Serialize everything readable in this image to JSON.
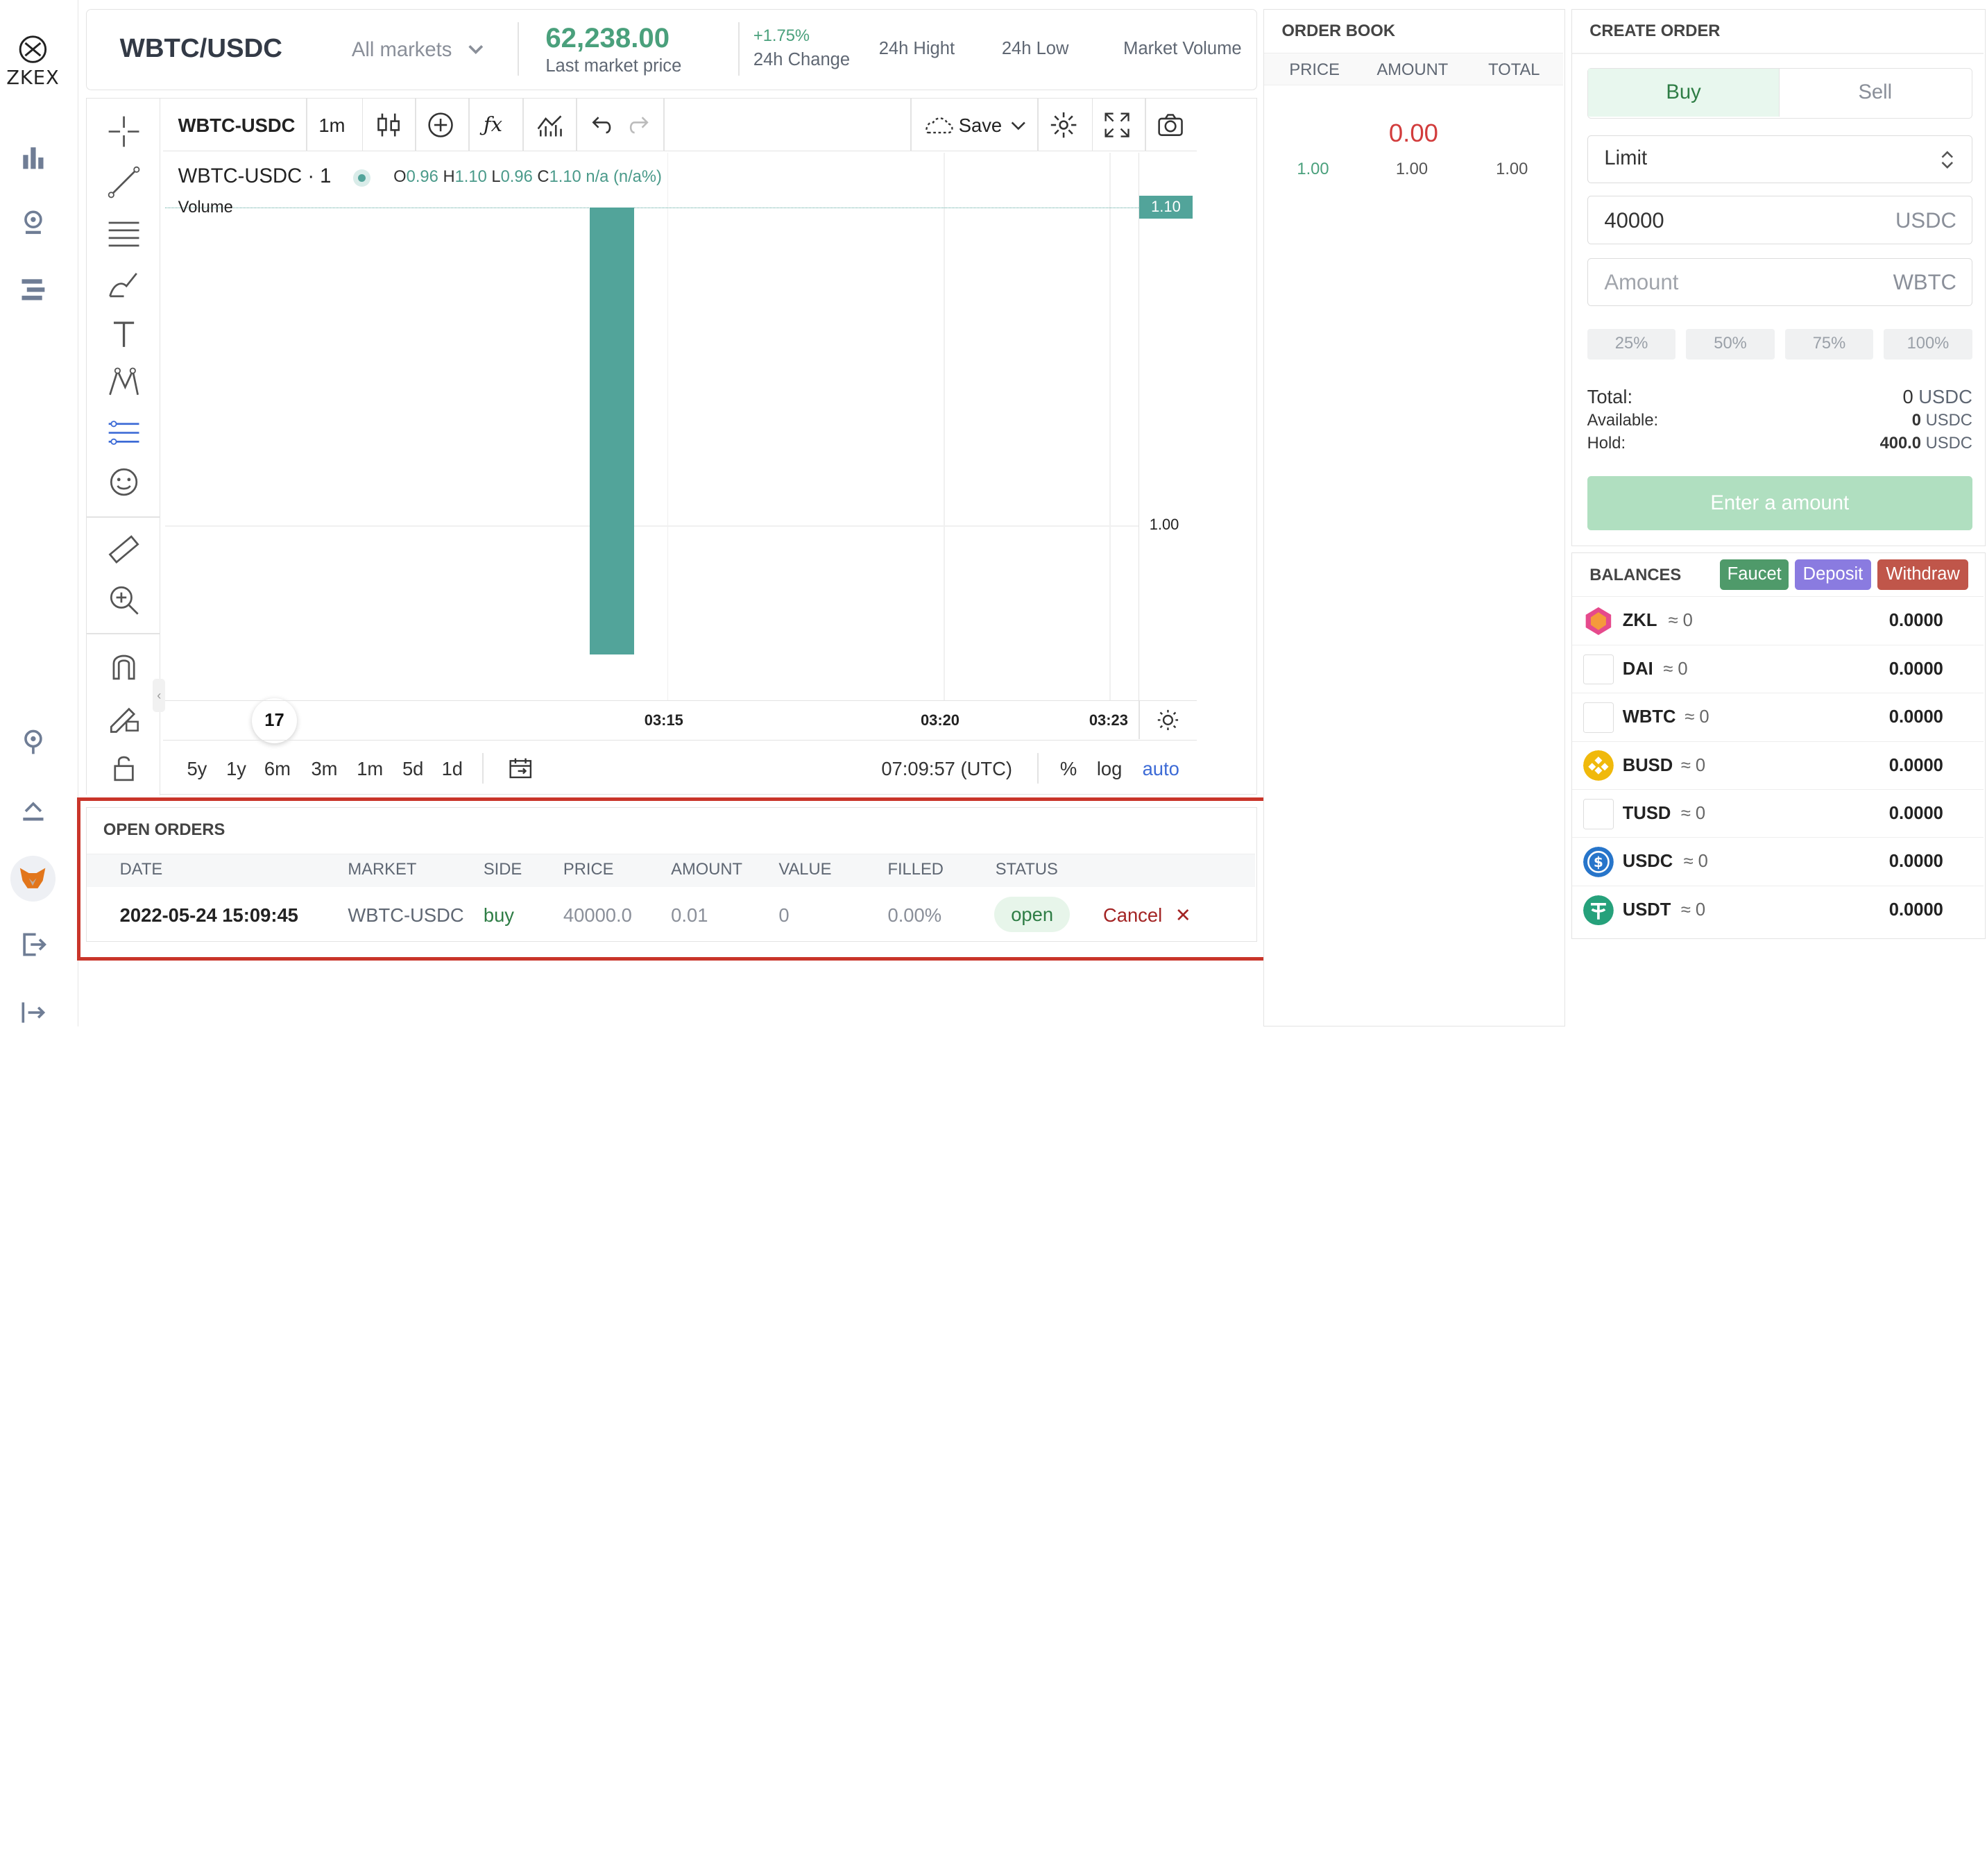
{
  "logo": {
    "text": "ZKEX"
  },
  "nav": {
    "icons": [
      "bar-chart-icon",
      "wallet-icon",
      "list-icon",
      "location-icon",
      "upload-icon",
      "metamask-icon",
      "logout-icon",
      "expand-icon"
    ]
  },
  "header": {
    "pair": "WBTC/USDC",
    "markets_dropdown": "All markets",
    "last_price": "62,238.00",
    "last_price_label": "Last market price",
    "change": "+1.75%",
    "change_label": "24h Change",
    "high_label": "24h Hight",
    "low_label": "24h Low",
    "volume_label": "Market Volume",
    "accent": "#4aa07c"
  },
  "chart_toolbar": {
    "symbol": "WBTC-USDC",
    "interval": "1m",
    "save_label": "Save"
  },
  "chart": {
    "legend_symbol": "WBTC-USDC · 1",
    "ohlc": {
      "o_label": "O",
      "o": "0.96",
      "h_label": "H",
      "h": "1.10",
      "l_label": "L",
      "l": "0.96",
      "c_label": "C",
      "c": "1.10",
      "change": "n/a (n/a%)"
    },
    "volume_label": "Volume",
    "price_tag": "1.10",
    "y_tick": "1.00",
    "x_ticks": [
      "03:15",
      "03:20",
      "03:23"
    ],
    "ranges": [
      "5y",
      "1y",
      "6m",
      "3m",
      "1m",
      "5d",
      "1d"
    ],
    "time": "07:09:57 (UTC)",
    "scale_percent": "%",
    "scale_log": "log",
    "scale_auto": "auto",
    "tv_logo": "17"
  },
  "chart_data": {
    "type": "bar",
    "series": [
      {
        "values": [
          0.96,
          1.1
        ]
      }
    ],
    "ylabel": "",
    "x_ticks": [
      "03:15",
      "03:20",
      "03:23"
    ],
    "y_ticks": [
      "1.00",
      "1.10"
    ]
  },
  "open_orders": {
    "title": "OPEN ORDERS",
    "columns": [
      "DATE",
      "MARKET",
      "SIDE",
      "PRICE",
      "AMOUNT",
      "VALUE",
      "FILLED",
      "STATUS"
    ],
    "rows": [
      {
        "date": "2022-05-24 15:09:45",
        "market": "WBTC-USDC",
        "side": "buy",
        "price": "40000.0",
        "amount": "0.01",
        "value": "0",
        "filled": "0.00%",
        "status": "open",
        "cancel": "Cancel"
      }
    ]
  },
  "order_book": {
    "title": "ORDER BOOK",
    "columns": [
      "PRICE",
      "AMOUNT",
      "TOTAL"
    ],
    "mid_price": "0.00",
    "rows": [
      {
        "price": "1.00",
        "amount": "1.00",
        "total": "1.00"
      }
    ]
  },
  "create_order": {
    "title": "CREATE ORDER",
    "buy_tab": "Buy",
    "sell_tab": "Sell",
    "order_type": "Limit",
    "price_value": "40000",
    "price_unit": "USDC",
    "amount_placeholder": "Amount",
    "amount_unit": "WBTC",
    "percent_buttons": [
      "25%",
      "50%",
      "75%",
      "100%"
    ],
    "total_label": "Total:",
    "total_value": "0",
    "total_unit": "USDC",
    "available_label": "Available:",
    "available_value": "0",
    "available_unit": "USDC",
    "hold_label": "Hold:",
    "hold_value": "400.0",
    "hold_unit": "USDC",
    "submit_label": "Enter a amount"
  },
  "balances": {
    "title": "BALANCES",
    "faucet": "Faucet",
    "deposit": "Deposit",
    "withdraw": "Withdraw",
    "faucet_color": "#4f9a6a",
    "deposit_color": "#8a7be0",
    "withdraw_color": "#c0564a",
    "rows": [
      {
        "symbol": "ZKL",
        "approx": "≈ 0",
        "value": "0.0000"
      },
      {
        "symbol": "DAI",
        "approx": "≈ 0",
        "value": "0.0000"
      },
      {
        "symbol": "WBTC",
        "approx": "≈ 0",
        "value": "0.0000"
      },
      {
        "symbol": "BUSD",
        "approx": "≈ 0",
        "value": "0.0000"
      },
      {
        "symbol": "TUSD",
        "approx": "≈ 0",
        "value": "0.0000"
      },
      {
        "symbol": "USDC",
        "approx": "≈ 0",
        "value": "0.0000"
      },
      {
        "symbol": "USDT",
        "approx": "≈ 0",
        "value": "0.0000"
      }
    ]
  }
}
